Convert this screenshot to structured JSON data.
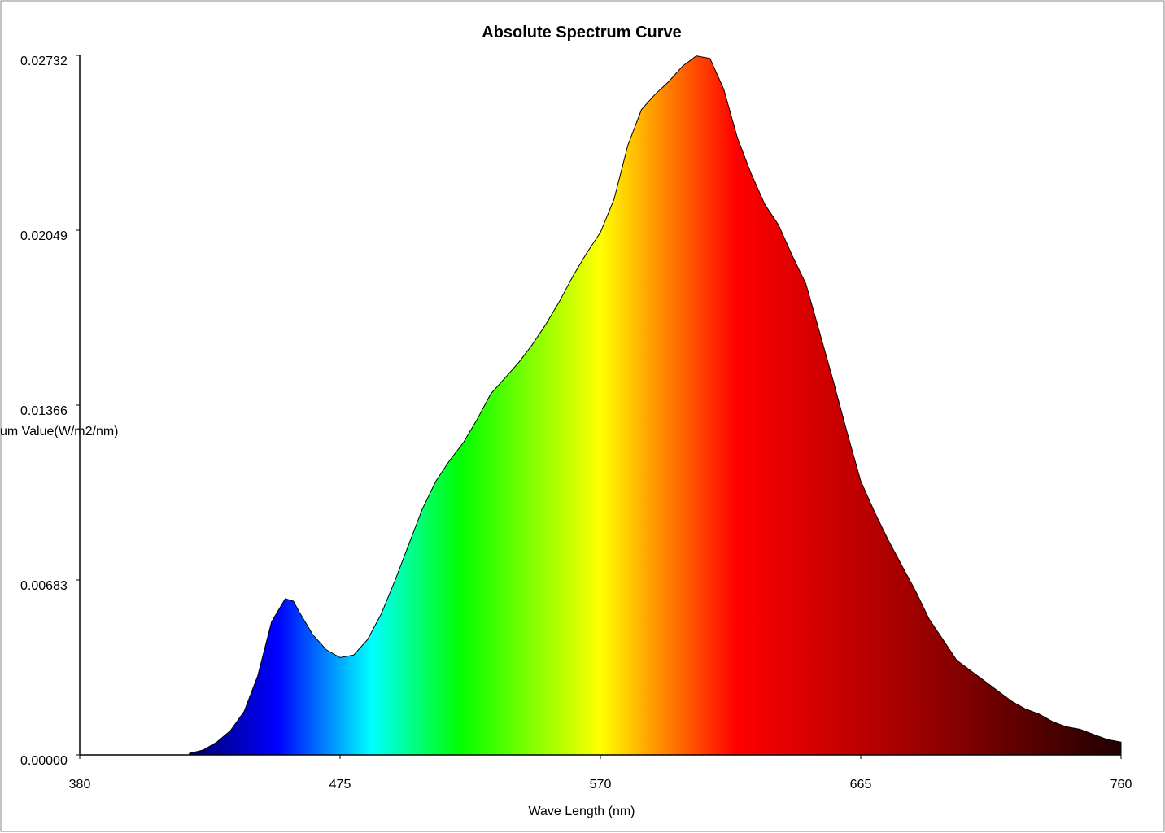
{
  "chart_data": {
    "type": "area",
    "title": "Absolute Spectrum Curve",
    "x_label": "Wave Length (nm)",
    "y_label": "um Value(W/m2/nm)",
    "x": [
      420,
      425,
      430,
      435,
      440,
      445,
      450,
      455,
      458,
      460,
      465,
      470,
      475,
      480,
      485,
      490,
      495,
      500,
      505,
      510,
      515,
      520,
      525,
      530,
      535,
      540,
      545,
      550,
      555,
      560,
      565,
      570,
      575,
      580,
      585,
      590,
      595,
      600,
      605,
      610,
      615,
      620,
      625,
      630,
      635,
      640,
      645,
      650,
      655,
      660,
      665,
      670,
      675,
      680,
      685,
      690,
      695,
      700,
      705,
      710,
      715,
      720,
      725,
      730,
      735,
      740,
      745,
      750,
      755,
      760
    ],
    "values": [
      6e-05,
      0.00019,
      0.0005,
      0.00095,
      0.0017,
      0.0031,
      0.0052,
      0.0061,
      0.006,
      0.0056,
      0.0047,
      0.0041,
      0.0038,
      0.0039,
      0.0045,
      0.0055,
      0.0068,
      0.0082,
      0.0096,
      0.0107,
      0.0115,
      0.0122,
      0.0131,
      0.0141,
      0.0147,
      0.0153,
      0.016,
      0.0168,
      0.0177,
      0.0187,
      0.0196,
      0.0204,
      0.0217,
      0.0238,
      0.0252,
      0.0258,
      0.0263,
      0.0269,
      0.0273,
      0.0272,
      0.026,
      0.0241,
      0.0227,
      0.0215,
      0.0207,
      0.0195,
      0.0184,
      0.0165,
      0.0146,
      0.0126,
      0.0107,
      0.0095,
      0.0084,
      0.0074,
      0.0064,
      0.0053,
      0.0045,
      0.0037,
      0.0033,
      0.0029,
      0.0025,
      0.0021,
      0.0018,
      0.0016,
      0.0013,
      0.0011,
      0.001,
      0.0008,
      0.0006,
      0.0005
    ],
    "xlim": [
      380,
      760
    ],
    "xticks": [
      380,
      475,
      570,
      665,
      760
    ],
    "ylim": [
      0,
      0.02732
    ],
    "yticks": [
      {
        "value": 0,
        "label": "0.00000"
      },
      0.00683,
      0.01366,
      0.02049,
      0.02732
    ]
  }
}
